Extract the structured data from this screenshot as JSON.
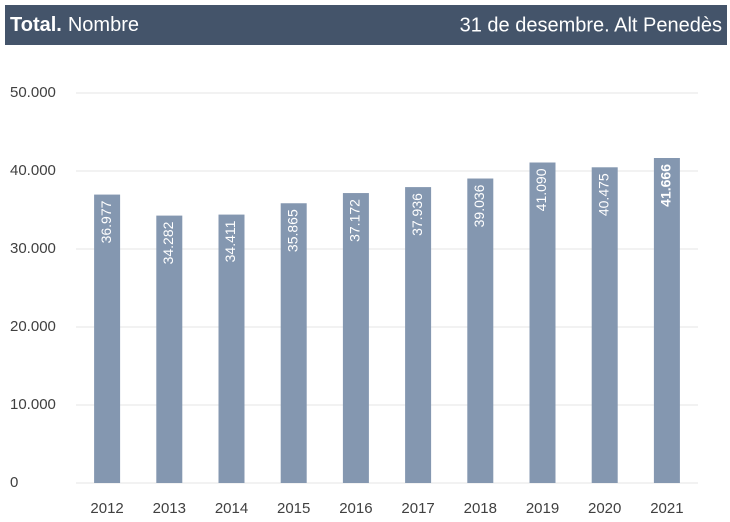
{
  "chart_data": {
    "type": "bar",
    "title": {
      "bold": "Total.",
      "rest": "Nombre"
    },
    "subtitle": "31 de desembre. Alt Penedès",
    "categories": [
      "2012",
      "2013",
      "2014",
      "2015",
      "2016",
      "2017",
      "2018",
      "2019",
      "2020",
      "2021"
    ],
    "values": [
      36977,
      34282,
      34411,
      35865,
      37172,
      37936,
      39036,
      41090,
      40475,
      41666
    ],
    "value_labels": [
      "36.977",
      "34.282",
      "34.411",
      "35.865",
      "37.172",
      "37.936",
      "39.036",
      "41.090",
      "40.475",
      "41.666"
    ],
    "color": "#8497b0",
    "ylim": [
      0,
      50000
    ],
    "yticks": [
      0,
      {
        "value": 10000,
        "label": "10.000"
      },
      {
        "value": 20000,
        "label": "20.000"
      },
      {
        "value": 30000,
        "label": "30.000"
      },
      {
        "value": 40000,
        "label": "40.000"
      },
      {
        "value": 50000,
        "label": "50.000"
      }
    ],
    "grid": true
  }
}
